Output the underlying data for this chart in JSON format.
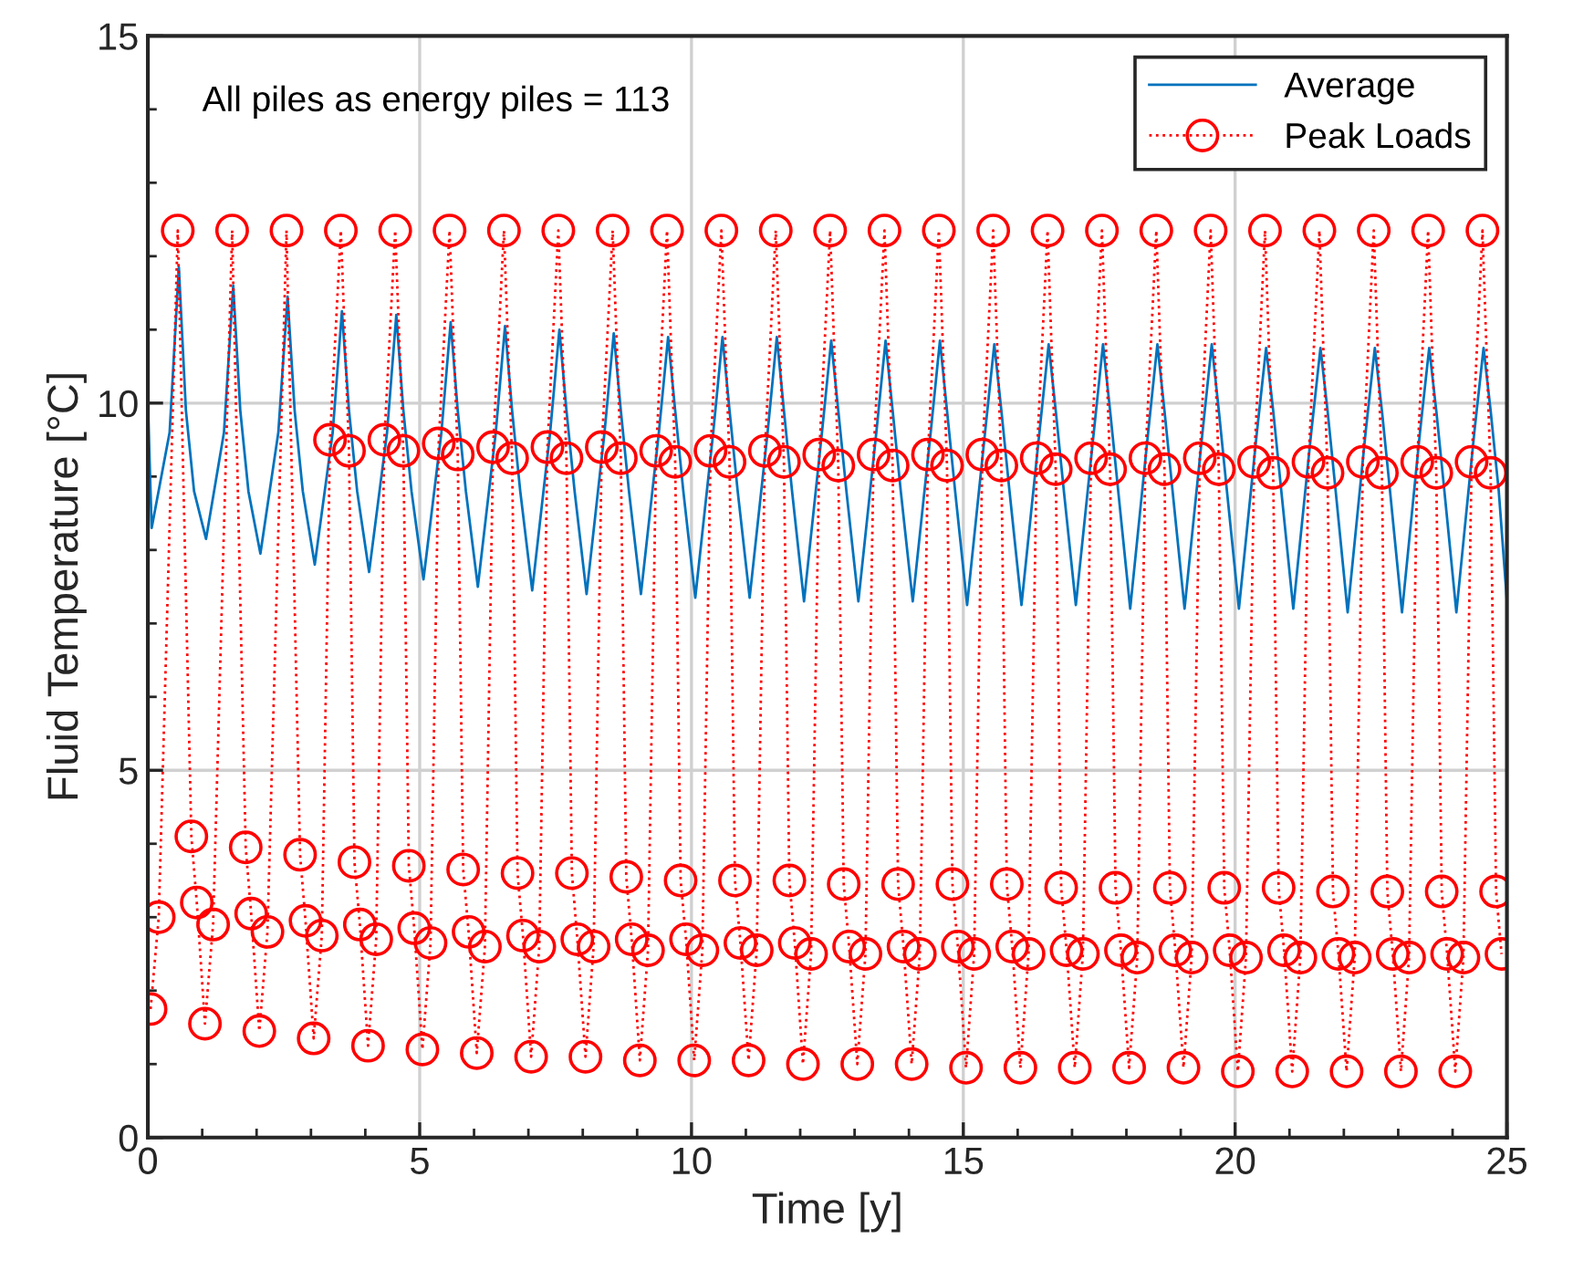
{
  "chart_data": {
    "type": "line",
    "xlabel": "Time [y]",
    "ylabel": "Fluid Temperature [°C]",
    "annotations": [
      "All piles as energy piles = 113"
    ],
    "xlim": [
      0,
      25
    ],
    "ylim": [
      0,
      15
    ],
    "xticks": [
      0,
      {
        "value": 1,
        "label": null
      },
      {
        "value": 2,
        "label": null
      },
      {
        "value": 3,
        "label": null
      },
      {
        "value": 4,
        "label": null
      },
      5,
      {
        "value": 6,
        "label": null
      },
      {
        "value": 7,
        "label": null
      },
      {
        "value": 8,
        "label": null
      },
      {
        "value": 9,
        "label": null
      },
      10,
      {
        "value": 11,
        "label": null
      },
      {
        "value": 12,
        "label": null
      },
      {
        "value": 13,
        "label": null
      },
      {
        "value": 14,
        "label": null
      },
      15,
      {
        "value": 16,
        "label": null
      },
      {
        "value": 17,
        "label": null
      },
      {
        "value": 18,
        "label": null
      },
      {
        "value": 19,
        "label": null
      },
      20,
      {
        "value": 21,
        "label": null
      },
      {
        "value": 22,
        "label": null
      },
      {
        "value": 23,
        "label": null
      },
      {
        "value": 24,
        "label": null
      },
      25
    ],
    "yticks": [
      0,
      {
        "value": 1,
        "label": null
      },
      {
        "value": 2,
        "label": null
      },
      {
        "value": 3,
        "label": null
      },
      {
        "value": 4,
        "label": null
      },
      5,
      {
        "value": 6,
        "label": null
      },
      {
        "value": 7,
        "label": null
      },
      {
        "value": 8,
        "label": null
      },
      {
        "value": 9,
        "label": null
      },
      10,
      {
        "value": 11,
        "label": null
      },
      {
        "value": 12,
        "label": null
      },
      {
        "value": 13,
        "label": null
      },
      {
        "value": 14,
        "label": null
      },
      15
    ],
    "grid": true,
    "legend": "top right",
    "series": [
      {
        "name": "Average",
        "color": "#0072bd",
        "marker": "none",
        "line_style": "solid",
        "x": [
          0,
          0.07,
          0.4,
          0.57,
          0.7,
          0.85,
          1.07,
          1.4,
          1.57,
          1.7,
          1.85,
          2.07,
          2.4,
          2.57,
          2.7,
          2.85,
          3.07,
          3.4,
          3.57,
          3.7,
          3.85,
          4.07,
          4.4,
          4.57,
          4.7,
          4.85,
          5.07,
          5.4,
          5.57,
          5.7,
          5.85,
          6.07,
          6.4,
          6.57,
          6.7,
          6.85,
          7.07,
          7.4,
          7.57,
          7.7,
          7.85,
          8.07,
          8.4,
          8.57,
          8.7,
          8.85,
          9.07,
          9.4,
          9.57,
          9.7,
          9.85,
          10.07,
          10.4,
          10.57,
          10.7,
          10.85,
          11.07,
          11.4,
          11.57,
          11.7,
          11.85,
          12.07,
          12.4,
          12.57,
          12.7,
          12.85,
          13.07,
          13.4,
          13.57,
          13.7,
          13.85,
          14.07,
          14.4,
          14.57,
          14.7,
          14.85,
          15.07,
          15.4,
          15.57,
          15.7,
          15.85,
          16.07,
          16.4,
          16.57,
          16.7,
          16.85,
          17.07,
          17.4,
          17.57,
          17.7,
          17.85,
          18.07,
          18.4,
          18.57,
          18.7,
          18.85,
          19.07,
          19.4,
          19.57,
          19.7,
          19.85,
          20.07,
          20.4,
          20.57,
          20.7,
          20.85,
          21.07,
          21.4,
          21.57,
          21.7,
          21.85,
          22.07,
          22.4,
          22.57,
          22.7,
          22.85,
          23.07,
          23.4,
          23.57,
          23.7,
          23.85,
          24.07,
          24.4,
          24.57,
          24.7,
          24.85,
          25
        ],
        "values": [
          10,
          8.3,
          9.6,
          11.85,
          9.9,
          8.8,
          8.15,
          9.6,
          11.6,
          9.9,
          8.8,
          7.95,
          9.6,
          11.45,
          9.9,
          8.8,
          7.8,
          9.6,
          11.25,
          9.9,
          8.8,
          7.7,
          9.6,
          11.2,
          9.9,
          8.8,
          7.6,
          9.6,
          11.1,
          9.9,
          8.8,
          7.5,
          9.6,
          11.05,
          9.9,
          8.8,
          7.45,
          9.6,
          11.0,
          9.9,
          8.8,
          7.4,
          9.6,
          10.95,
          9.9,
          8.8,
          7.4,
          9.6,
          10.9,
          9.9,
          8.8,
          7.35,
          9.6,
          10.9,
          9.9,
          8.8,
          7.35,
          9.6,
          10.9,
          9.9,
          8.8,
          7.3,
          9.6,
          10.85,
          9.9,
          8.8,
          7.3,
          9.6,
          10.85,
          9.9,
          8.8,
          7.3,
          9.6,
          10.85,
          9.9,
          8.8,
          7.25,
          9.6,
          10.8,
          9.9,
          8.8,
          7.25,
          9.6,
          10.8,
          9.9,
          8.8,
          7.25,
          9.6,
          10.8,
          9.9,
          8.8,
          7.2,
          9.6,
          10.8,
          9.9,
          8.8,
          7.2,
          9.6,
          10.8,
          9.9,
          8.8,
          7.2,
          9.6,
          10.75,
          9.9,
          8.8,
          7.2,
          9.6,
          10.75,
          9.9,
          8.8,
          7.15,
          9.6,
          10.75,
          9.9,
          8.8,
          7.15,
          9.6,
          10.75,
          9.9,
          8.8,
          7.15,
          9.6,
          10.75,
          9.9,
          8.8,
          7.3
        ]
      },
      {
        "name": "Peak Loads",
        "color": "#ff0000",
        "marker": "circle",
        "line_style": "dotted",
        "x": [
          0.05,
          0.2,
          0.55,
          0.8,
          0.9,
          1.05,
          1.2,
          1.55,
          1.8,
          1.9,
          2.05,
          2.2,
          2.55,
          2.8,
          2.9,
          3.05,
          3.2,
          3.35,
          3.55,
          3.7,
          3.8,
          3.9,
          4.05,
          4.2,
          4.35,
          4.55,
          4.7,
          4.8,
          4.9,
          5.05,
          5.2,
          5.35,
          5.55,
          5.7,
          5.8,
          5.9,
          6.05,
          6.2,
          6.35,
          6.55,
          6.7,
          6.8,
          6.9,
          7.05,
          7.2,
          7.35,
          7.55,
          7.7,
          7.8,
          7.9,
          8.05,
          8.2,
          8.35,
          8.55,
          8.7,
          8.8,
          8.9,
          9.05,
          9.2,
          9.35,
          9.55,
          9.7,
          9.8,
          9.9,
          10.05,
          10.2,
          10.35,
          10.55,
          10.7,
          10.8,
          10.9,
          11.05,
          11.2,
          11.35,
          11.55,
          11.7,
          11.8,
          11.9,
          12.05,
          12.2,
          12.35,
          12.55,
          12.7,
          12.8,
          12.9,
          13.05,
          13.2,
          13.35,
          13.55,
          13.7,
          13.8,
          13.9,
          14.05,
          14.2,
          14.35,
          14.55,
          14.7,
          14.8,
          14.9,
          15.05,
          15.2,
          15.35,
          15.55,
          15.7,
          15.8,
          15.9,
          16.05,
          16.2,
          16.35,
          16.55,
          16.7,
          16.8,
          16.9,
          17.05,
          17.2,
          17.35,
          17.55,
          17.7,
          17.8,
          17.9,
          18.05,
          18.2,
          18.35,
          18.55,
          18.7,
          18.8,
          18.9,
          19.05,
          19.2,
          19.35,
          19.55,
          19.7,
          19.8,
          19.9,
          20.05,
          20.2,
          20.35,
          20.55,
          20.7,
          20.8,
          20.9,
          21.05,
          21.2,
          21.35,
          21.55,
          21.7,
          21.8,
          21.9,
          22.05,
          22.2,
          22.35,
          22.55,
          22.7,
          22.8,
          22.9,
          23.05,
          23.2,
          23.35,
          23.55,
          23.7,
          23.8,
          23.9,
          24.05,
          24.2,
          24.35,
          24.55,
          24.7,
          24.8,
          24.9
        ],
        "values": [
          1.75,
          3.0,
          12.35,
          4.1,
          3.2,
          1.55,
          2.9,
          12.35,
          3.95,
          3.05,
          1.45,
          2.8,
          12.35,
          3.85,
          2.95,
          1.35,
          2.75,
          9.5,
          12.35,
          9.35,
          3.75,
          2.9,
          1.25,
          2.7,
          9.5,
          12.35,
          9.35,
          3.7,
          2.85,
          1.2,
          2.65,
          9.45,
          12.35,
          9.3,
          3.65,
          2.8,
          1.15,
          2.6,
          9.4,
          12.35,
          9.25,
          3.6,
          2.75,
          1.1,
          2.6,
          9.4,
          12.35,
          9.25,
          3.6,
          2.7,
          1.1,
          2.6,
          9.4,
          12.35,
          9.25,
          3.55,
          2.7,
          1.05,
          2.55,
          9.35,
          12.35,
          9.2,
          3.5,
          2.7,
          1.05,
          2.55,
          9.35,
          12.35,
          9.2,
          3.5,
          2.65,
          1.05,
          2.55,
          9.35,
          12.35,
          9.2,
          3.5,
          2.65,
          1.0,
          2.5,
          9.3,
          12.35,
          9.15,
          3.45,
          2.6,
          1.0,
          2.5,
          9.3,
          12.35,
          9.15,
          3.45,
          2.6,
          1.0,
          2.5,
          9.3,
          12.35,
          9.15,
          3.45,
          2.6,
          0.95,
          2.5,
          9.3,
          12.35,
          9.15,
          3.45,
          2.6,
          0.95,
          2.5,
          9.25,
          12.35,
          9.1,
          3.4,
          2.55,
          0.95,
          2.5,
          9.25,
          12.35,
          9.1,
          3.4,
          2.55,
          0.95,
          2.45,
          9.25,
          12.35,
          9.1,
          3.4,
          2.55,
          0.95,
          2.45,
          9.25,
          12.35,
          9.1,
          3.4,
          2.55,
          0.9,
          2.45,
          9.2,
          12.35,
          9.05,
          3.4,
          2.55,
          0.9,
          2.45,
          9.2,
          12.35,
          9.05,
          3.35,
          2.5,
          0.9,
          2.45,
          9.2,
          12.35,
          9.05,
          3.35,
          2.5,
          0.9,
          2.45,
          9.2,
          12.35,
          9.05,
          3.35,
          2.5,
          0.9,
          2.45,
          9.2,
          12.35,
          9.05,
          3.35,
          2.5
        ]
      }
    ]
  }
}
